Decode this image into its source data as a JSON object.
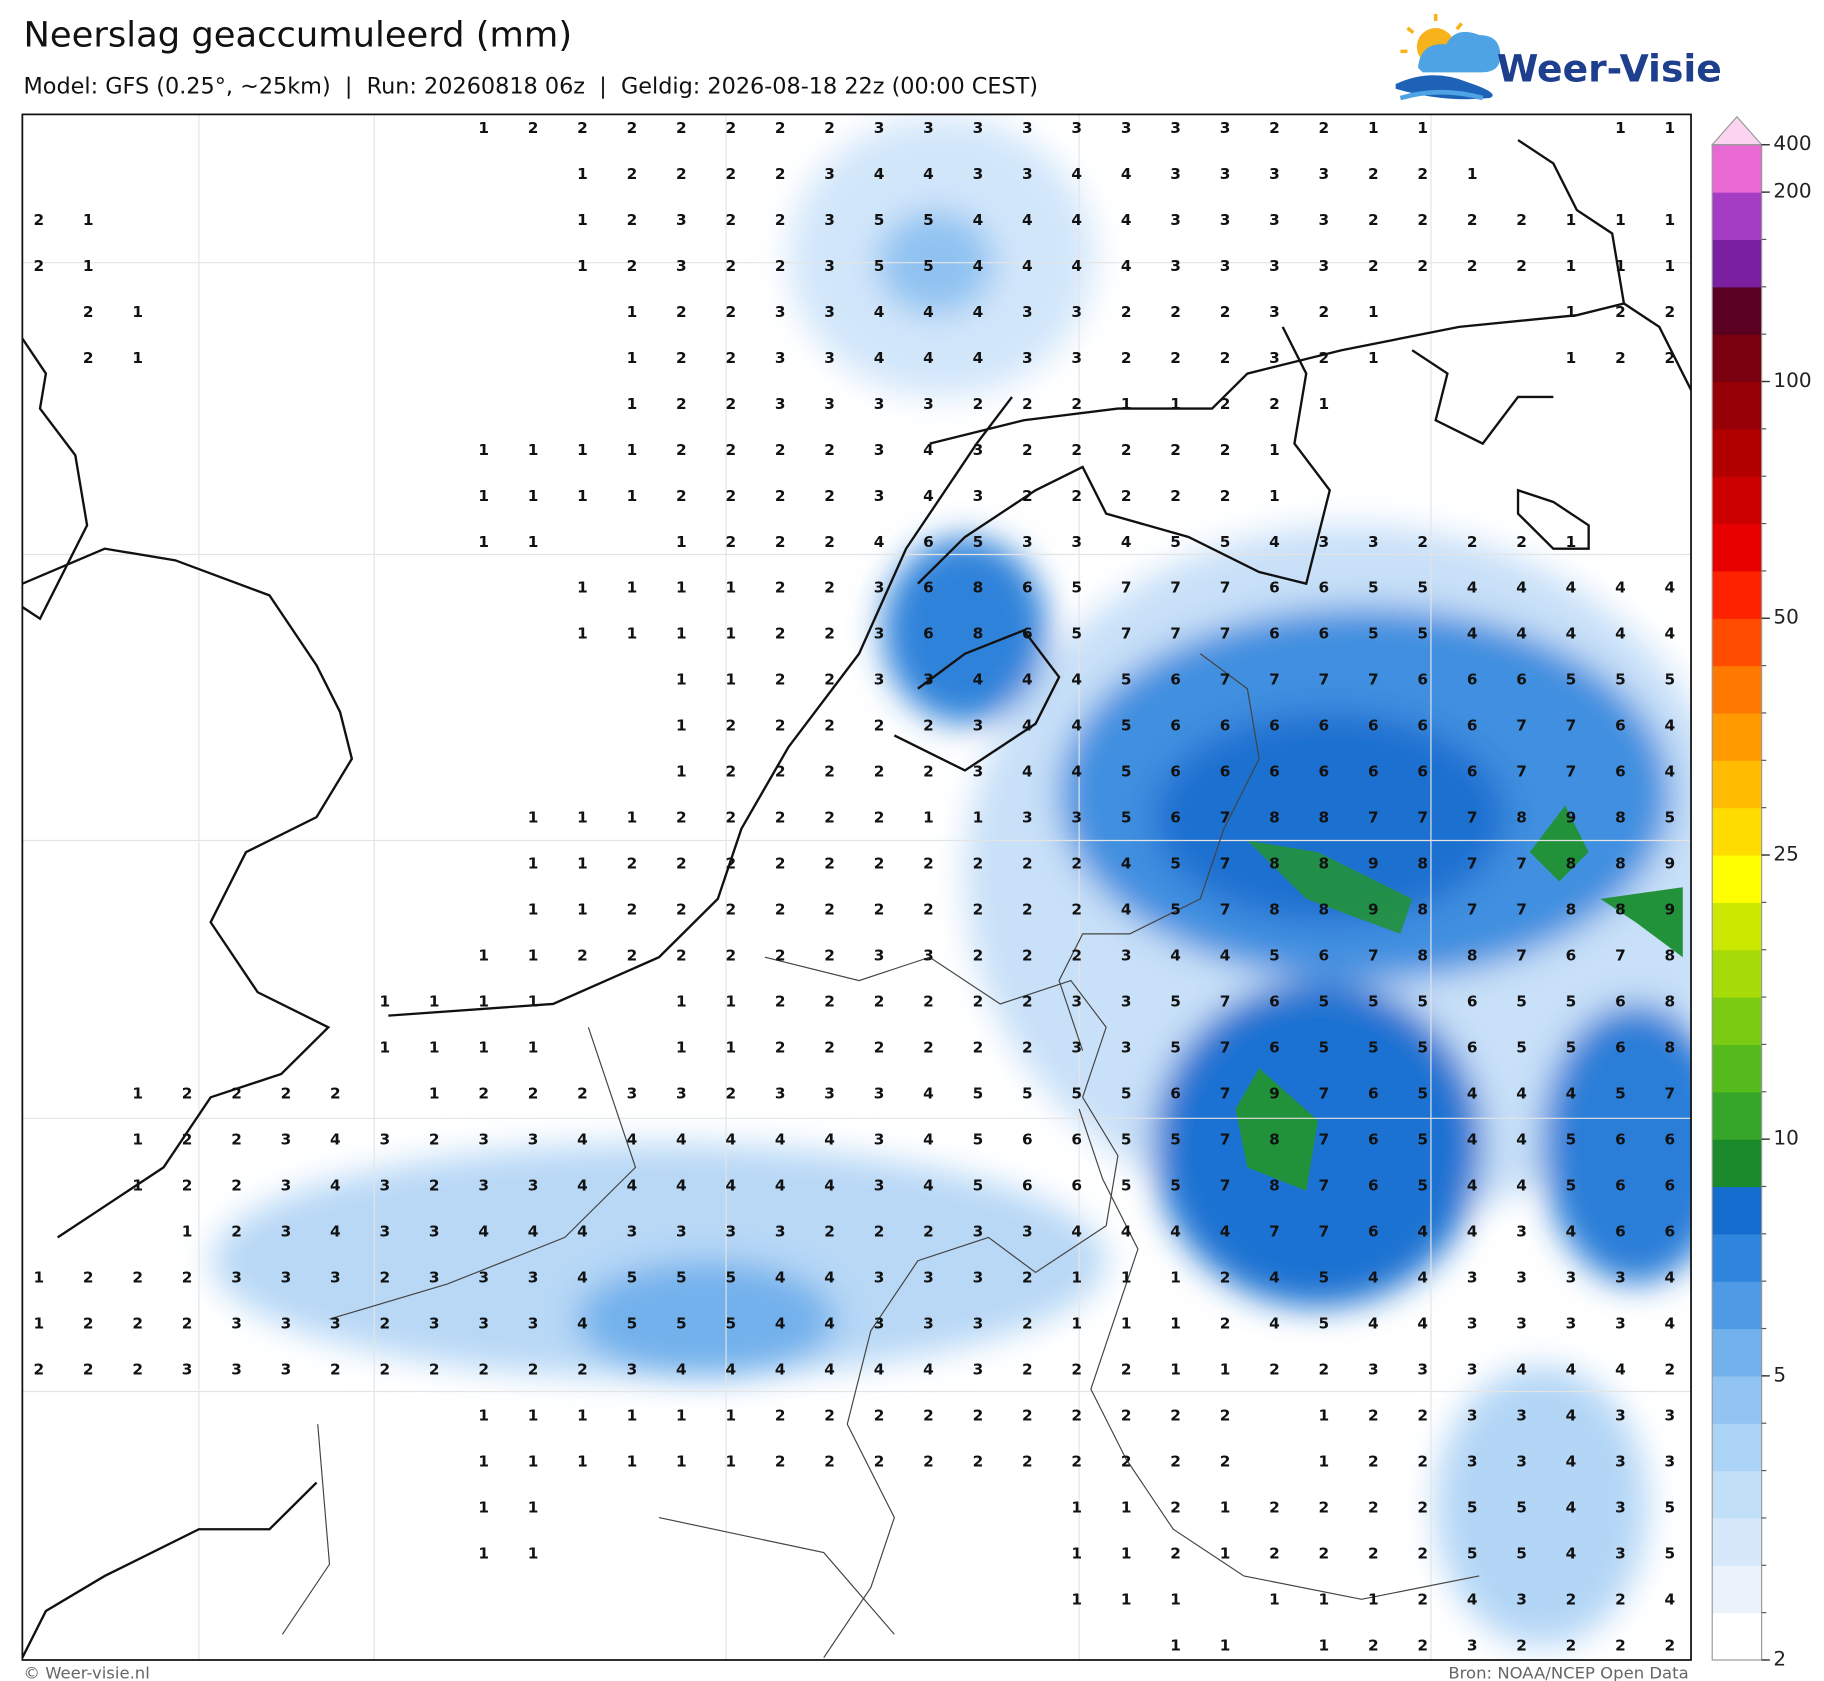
{
  "title": "Neerslag geaccumuleerd (mm)",
  "subtitle": "Model: GFS (0.25°, ~25km)  |  Run: 20260818 06z  |  Geldig: 2026-08-18 22z (00:00 CEST)",
  "logo": "Weer-Visie",
  "colorbar": {
    "ticks": [
      2,
      5,
      10,
      25,
      50,
      100,
      200,
      400
    ],
    "colors": [
      "#ffffff",
      "#eaf3fc",
      "#d6e9fa",
      "#c2dff8",
      "#abd3f5",
      "#91c4f1",
      "#72b1ec",
      "#4e9ae4",
      "#2f84dc",
      "#146ccf",
      "#1a8a2a",
      "#35a62a",
      "#55bb1c",
      "#7acb12",
      "#a6da08",
      "#cde800",
      "#ffff00",
      "#ffdc00",
      "#ffbc00",
      "#ff9a00",
      "#ff7800",
      "#ff4c00",
      "#ff2200",
      "#e80000",
      "#cc0000",
      "#b20000",
      "#980008",
      "#7a0010",
      "#5a0020",
      "#7a1fa0",
      "#a43cc4",
      "#e868d4"
    ],
    "extend_color": "#fcd4f0"
  },
  "grid_values": [
    [
      null,
      null,
      null,
      null,
      null,
      null,
      null,
      null,
      null,
      1,
      2,
      2,
      2,
      2,
      2,
      2,
      2,
      3,
      3,
      3,
      3,
      3,
      3,
      3,
      3,
      2,
      2,
      1,
      1,
      null,
      null,
      null,
      1,
      1
    ],
    [
      null,
      null,
      null,
      null,
      null,
      null,
      null,
      null,
      null,
      null,
      null,
      1,
      2,
      2,
      2,
      2,
      3,
      4,
      4,
      3,
      3,
      4,
      4,
      3,
      3,
      3,
      3,
      2,
      2,
      1,
      null,
      null,
      null,
      null
    ],
    [
      2,
      1,
      null,
      null,
      null,
      null,
      null,
      null,
      null,
      null,
      null,
      1,
      2,
      3,
      2,
      2,
      3,
      5,
      5,
      4,
      4,
      4,
      4,
      3,
      3,
      3,
      3,
      2,
      2,
      2,
      2,
      1,
      1,
      1
    ],
    [
      2,
      1,
      null,
      null,
      null,
      null,
      null,
      null,
      null,
      null,
      null,
      1,
      2,
      3,
      2,
      2,
      3,
      5,
      5,
      4,
      4,
      4,
      4,
      3,
      3,
      3,
      3,
      2,
      2,
      2,
      2,
      1,
      1,
      1
    ],
    [
      null,
      2,
      1,
      null,
      null,
      null,
      null,
      null,
      null,
      null,
      null,
      null,
      1,
      2,
      2,
      3,
      3,
      4,
      4,
      4,
      3,
      3,
      2,
      2,
      2,
      3,
      2,
      1,
      null,
      null,
      null,
      1,
      2,
      2
    ],
    [
      null,
      2,
      1,
      null,
      null,
      null,
      null,
      null,
      null,
      null,
      null,
      null,
      1,
      2,
      2,
      3,
      3,
      4,
      4,
      4,
      3,
      3,
      2,
      2,
      2,
      3,
      2,
      1,
      null,
      null,
      null,
      1,
      2,
      2
    ],
    [
      null,
      null,
      null,
      null,
      null,
      null,
      null,
      null,
      null,
      null,
      null,
      null,
      1,
      2,
      2,
      3,
      3,
      3,
      3,
      2,
      2,
      2,
      1,
      1,
      2,
      2,
      1,
      null,
      null,
      null,
      null,
      null,
      null,
      null
    ],
    [
      null,
      null,
      null,
      null,
      null,
      null,
      null,
      null,
      null,
      1,
      1,
      1,
      1,
      2,
      2,
      2,
      2,
      3,
      4,
      3,
      2,
      2,
      2,
      2,
      2,
      1,
      null,
      null,
      null,
      null,
      null,
      null,
      null,
      null
    ],
    [
      null,
      null,
      null,
      null,
      null,
      null,
      null,
      null,
      null,
      1,
      1,
      1,
      1,
      2,
      2,
      2,
      2,
      3,
      4,
      3,
      2,
      2,
      2,
      2,
      2,
      1,
      null,
      null,
      null,
      null,
      null,
      null,
      null,
      null
    ],
    [
      null,
      null,
      null,
      null,
      null,
      null,
      null,
      null,
      null,
      1,
      1,
      null,
      null,
      1,
      2,
      2,
      2,
      4,
      6,
      5,
      3,
      3,
      4,
      5,
      5,
      4,
      3,
      3,
      2,
      2,
      2,
      1,
      null,
      null
    ],
    [
      null,
      null,
      null,
      null,
      null,
      null,
      null,
      null,
      null,
      null,
      null,
      1,
      1,
      1,
      1,
      2,
      2,
      3,
      6,
      8,
      6,
      5,
      7,
      7,
      7,
      6,
      6,
      5,
      5,
      4,
      4,
      4,
      4,
      4
    ],
    [
      null,
      null,
      null,
      null,
      null,
      null,
      null,
      null,
      null,
      null,
      null,
      1,
      1,
      1,
      1,
      2,
      2,
      3,
      6,
      8,
      6,
      5,
      7,
      7,
      7,
      6,
      6,
      5,
      5,
      4,
      4,
      4,
      4,
      4
    ],
    [
      null,
      null,
      null,
      null,
      null,
      null,
      null,
      null,
      null,
      null,
      null,
      null,
      null,
      1,
      1,
      2,
      2,
      3,
      3,
      4,
      4,
      4,
      5,
      6,
      7,
      7,
      7,
      7,
      6,
      6,
      6,
      5,
      5,
      5
    ],
    [
      null,
      null,
      null,
      null,
      null,
      null,
      null,
      null,
      null,
      null,
      null,
      null,
      null,
      1,
      2,
      2,
      2,
      2,
      2,
      3,
      4,
      4,
      5,
      6,
      6,
      6,
      6,
      6,
      6,
      6,
      7,
      7,
      6,
      4
    ],
    [
      null,
      null,
      null,
      null,
      null,
      null,
      null,
      null,
      null,
      null,
      null,
      null,
      null,
      1,
      2,
      2,
      2,
      2,
      2,
      3,
      4,
      4,
      5,
      6,
      6,
      6,
      6,
      6,
      6,
      6,
      7,
      7,
      6,
      4
    ],
    [
      null,
      null,
      null,
      null,
      null,
      null,
      null,
      null,
      null,
      null,
      1,
      1,
      1,
      2,
      2,
      2,
      2,
      2,
      1,
      1,
      3,
      3,
      5,
      6,
      7,
      8,
      8,
      7,
      7,
      7,
      8,
      9,
      8,
      5
    ],
    [
      null,
      null,
      null,
      null,
      null,
      null,
      null,
      null,
      null,
      null,
      1,
      1,
      2,
      2,
      2,
      2,
      2,
      2,
      2,
      2,
      2,
      2,
      4,
      5,
      7,
      8,
      8,
      9,
      8,
      7,
      7,
      8,
      8,
      9
    ],
    [
      null,
      null,
      null,
      null,
      null,
      null,
      null,
      null,
      null,
      null,
      1,
      1,
      2,
      2,
      2,
      2,
      2,
      2,
      2,
      2,
      2,
      2,
      4,
      5,
      7,
      8,
      8,
      9,
      8,
      7,
      7,
      8,
      8,
      9
    ],
    [
      null,
      null,
      null,
      null,
      null,
      null,
      null,
      null,
      null,
      1,
      1,
      2,
      2,
      2,
      2,
      2,
      2,
      3,
      3,
      2,
      2,
      2,
      3,
      4,
      4,
      5,
      6,
      7,
      8,
      8,
      7,
      6,
      7,
      8
    ],
    [
      null,
      null,
      null,
      null,
      null,
      null,
      null,
      1,
      1,
      1,
      1,
      null,
      null,
      1,
      1,
      2,
      2,
      2,
      2,
      2,
      2,
      3,
      3,
      5,
      7,
      6,
      5,
      5,
      5,
      6,
      5,
      5,
      6,
      8
    ],
    [
      null,
      null,
      null,
      null,
      null,
      null,
      null,
      1,
      1,
      1,
      1,
      null,
      null,
      1,
      1,
      2,
      2,
      2,
      2,
      2,
      2,
      3,
      3,
      5,
      7,
      6,
      5,
      5,
      5,
      6,
      5,
      5,
      6,
      8
    ],
    [
      null,
      null,
      1,
      2,
      2,
      2,
      2,
      null,
      1,
      2,
      2,
      2,
      3,
      3,
      2,
      3,
      3,
      3,
      4,
      5,
      5,
      5,
      5,
      6,
      7,
      9,
      7,
      6,
      5,
      4,
      4,
      4,
      5,
      7
    ],
    [
      null,
      null,
      1,
      2,
      2,
      3,
      4,
      3,
      2,
      3,
      3,
      4,
      4,
      4,
      4,
      4,
      4,
      3,
      4,
      5,
      6,
      6,
      5,
      5,
      7,
      8,
      7,
      6,
      5,
      4,
      4,
      5,
      6,
      6
    ],
    [
      null,
      null,
      1,
      2,
      2,
      3,
      4,
      3,
      2,
      3,
      3,
      4,
      4,
      4,
      4,
      4,
      4,
      3,
      4,
      5,
      6,
      6,
      5,
      5,
      7,
      8,
      7,
      6,
      5,
      4,
      4,
      5,
      6,
      6
    ],
    [
      null,
      null,
      null,
      1,
      2,
      3,
      4,
      3,
      3,
      4,
      4,
      4,
      3,
      3,
      3,
      3,
      2,
      2,
      2,
      3,
      3,
      4,
      4,
      4,
      4,
      7,
      7,
      6,
      4,
      4,
      3,
      4,
      6,
      6
    ],
    [
      1,
      2,
      2,
      2,
      3,
      3,
      3,
      2,
      3,
      3,
      3,
      4,
      5,
      5,
      5,
      4,
      4,
      3,
      3,
      3,
      2,
      1,
      1,
      1,
      2,
      4,
      5,
      4,
      4,
      3,
      3,
      3,
      3,
      4
    ],
    [
      1,
      2,
      2,
      2,
      3,
      3,
      3,
      2,
      3,
      3,
      3,
      4,
      5,
      5,
      5,
      4,
      4,
      3,
      3,
      3,
      2,
      1,
      1,
      1,
      2,
      4,
      5,
      4,
      4,
      3,
      3,
      3,
      3,
      4
    ],
    [
      2,
      2,
      2,
      3,
      3,
      3,
      2,
      2,
      2,
      2,
      2,
      2,
      3,
      4,
      4,
      4,
      4,
      4,
      4,
      3,
      2,
      2,
      2,
      1,
      1,
      2,
      2,
      3,
      3,
      3,
      4,
      4,
      4,
      2
    ],
    [
      null,
      null,
      null,
      null,
      null,
      null,
      null,
      null,
      null,
      1,
      1,
      1,
      1,
      1,
      1,
      2,
      2,
      2,
      2,
      2,
      2,
      2,
      2,
      2,
      2,
      null,
      1,
      2,
      2,
      3,
      3,
      4,
      3,
      3
    ],
    [
      null,
      null,
      null,
      null,
      null,
      null,
      null,
      null,
      null,
      1,
      1,
      1,
      1,
      1,
      1,
      2,
      2,
      2,
      2,
      2,
      2,
      2,
      2,
      2,
      2,
      null,
      1,
      2,
      2,
      3,
      3,
      4,
      3,
      3
    ],
    [
      null,
      null,
      null,
      null,
      null,
      null,
      null,
      null,
      null,
      1,
      1,
      null,
      null,
      null,
      null,
      null,
      null,
      null,
      null,
      null,
      null,
      1,
      1,
      2,
      1,
      2,
      2,
      2,
      2,
      5,
      5,
      4,
      3,
      5
    ],
    [
      null,
      null,
      null,
      null,
      null,
      null,
      null,
      null,
      null,
      1,
      1,
      null,
      null,
      null,
      null,
      null,
      null,
      null,
      null,
      null,
      null,
      1,
      1,
      2,
      1,
      2,
      2,
      2,
      2,
      5,
      5,
      4,
      3,
      5
    ],
    [
      null,
      null,
      null,
      null,
      null,
      null,
      null,
      null,
      null,
      null,
      null,
      null,
      null,
      null,
      null,
      null,
      null,
      null,
      null,
      null,
      null,
      1,
      1,
      1,
      null,
      1,
      1,
      1,
      2,
      4,
      3,
      2,
      2,
      4
    ],
    [
      null,
      null,
      null,
      null,
      null,
      null,
      null,
      null,
      null,
      null,
      null,
      null,
      null,
      null,
      null,
      null,
      null,
      null,
      null,
      null,
      null,
      null,
      null,
      1,
      1,
      null,
      1,
      2,
      2,
      3,
      2,
      2,
      2,
      2
    ]
  ],
  "footer": {
    "left": "© Weer-visie.nl",
    "right": "Bron: NOAA/NCEP Open Data"
  }
}
